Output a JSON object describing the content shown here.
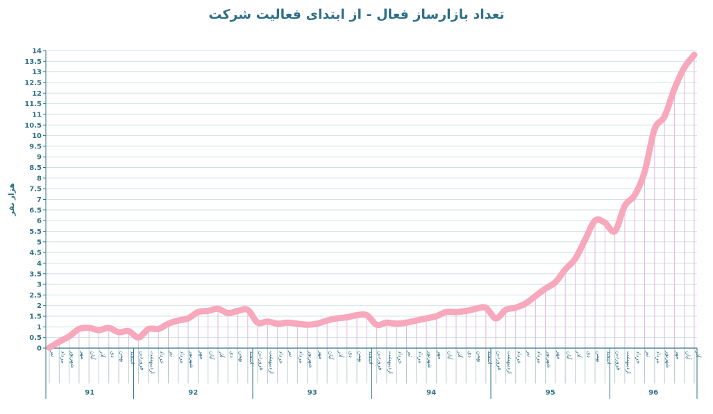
{
  "chart_data": {
    "type": "line",
    "title": "تعداد بازارساز فعال - از ابتدای فعالیت شرکت",
    "ylabel": "هزار نفر",
    "xlabel": "",
    "ylim": [
      0,
      14
    ],
    "ytick_step": 0.5,
    "grid": true,
    "colors": {
      "line": "#f7a8bc",
      "title": "#2e6f86",
      "grid": "#cfe0e4",
      "vgrid": "#e2b6dd",
      "axis": "#2e6f86"
    },
    "groups": [
      {
        "label": "91",
        "months": [
          "تیر",
          "مرداد",
          "شهریور",
          "مهر",
          "آبان",
          "آذر",
          "دی",
          "بهمن",
          "اسفند"
        ]
      },
      {
        "label": "92",
        "months": [
          "فروردین",
          "اردیبهشت",
          "خرداد",
          "تیر",
          "مرداد",
          "شهریور",
          "مهر",
          "آبان",
          "آذر",
          "دی",
          "بهمن",
          "اسفند"
        ]
      },
      {
        "label": "93",
        "months": [
          "فروردین",
          "اردیبهشت",
          "خرداد",
          "تیر",
          "مرداد",
          "شهریور",
          "مهر",
          "آبان",
          "آذر",
          "دی",
          "بهمن",
          "اسفند"
        ]
      },
      {
        "label": "94",
        "months": [
          "فروردین",
          "اردیبهشت",
          "خرداد",
          "تیر",
          "مرداد",
          "شهریور",
          "مهر",
          "آبان",
          "آذر",
          "دی",
          "بهمن",
          "اسفند"
        ]
      },
      {
        "label": "95",
        "months": [
          "فروردین",
          "اردیبهشت",
          "خرداد",
          "تیر",
          "مرداد",
          "شهریور",
          "مهر",
          "آبان",
          "آذر",
          "دی",
          "بهمن",
          "اسفند"
        ]
      },
      {
        "label": "96",
        "months": [
          "فروردین",
          "اردیبهشت",
          "خرداد",
          "تیر",
          "مرداد",
          "شهریور",
          "مهر",
          "آبان",
          "آذر"
        ]
      }
    ],
    "series": [
      {
        "values": [
          0.02,
          0.3,
          0.55,
          0.9,
          0.95,
          0.85,
          0.95,
          0.75,
          0.8,
          0.5,
          0.9,
          0.9,
          1.15,
          1.3,
          1.4,
          1.7,
          1.75,
          1.85,
          1.65,
          1.75,
          1.8,
          1.2,
          1.25,
          1.15,
          1.2,
          1.15,
          1.1,
          1.15,
          1.3,
          1.4,
          1.45,
          1.55,
          1.55,
          1.1,
          1.2,
          1.15,
          1.2,
          1.3,
          1.4,
          1.5,
          1.7,
          1.7,
          1.75,
          1.85,
          1.9,
          1.4,
          1.8,
          1.9,
          2.1,
          2.45,
          2.8,
          3.1,
          3.7,
          4.2,
          5.1,
          6.0,
          5.9,
          5.5,
          6.7,
          7.2,
          8.3,
          10.3,
          10.9,
          12.2,
          13.2,
          13.8
        ]
      }
    ]
  }
}
